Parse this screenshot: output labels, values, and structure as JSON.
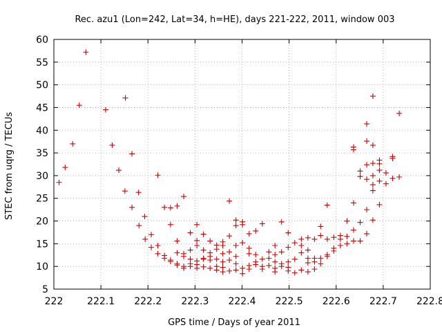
{
  "chart_data": {
    "type": "scatter",
    "title": "Rec. azu1 (Lon=242, Lat=34, h=HE), days 221-222, 2011, window 003",
    "xlabel": "GPS time / Days of year 2011",
    "ylabel": "STEC from uqrg / TECUs",
    "xlim": [
      222,
      222.8
    ],
    "ylim": [
      5,
      60
    ],
    "xticks": [
      "222",
      "222.1",
      "222.2",
      "222.3",
      "222.4",
      "222.5",
      "222.6",
      "222.7",
      "222.8"
    ],
    "yticks": [
      "5",
      "10",
      "15",
      "20",
      "25",
      "30",
      "35",
      "40",
      "45",
      "50",
      "55",
      "60"
    ],
    "marker": "+",
    "color": "#cc0000",
    "points": [
      [
        222.011,
        28.5
      ],
      [
        222.024,
        31.8
      ],
      [
        222.04,
        37.0
      ],
      [
        222.054,
        45.5
      ],
      [
        222.068,
        57.2
      ],
      [
        222.11,
        44.5
      ],
      [
        222.124,
        36.7
      ],
      [
        222.138,
        31.2
      ],
      [
        222.151,
        26.6
      ],
      [
        222.152,
        47.1
      ],
      [
        222.166,
        34.8
      ],
      [
        222.166,
        23.0
      ],
      [
        222.18,
        26.3
      ],
      [
        222.181,
        19.0
      ],
      [
        222.193,
        21.0
      ],
      [
        222.194,
        16.0
      ],
      [
        222.207,
        17.0
      ],
      [
        222.207,
        14.2
      ],
      [
        222.221,
        30.1
      ],
      [
        222.221,
        14.6
      ],
      [
        222.221,
        12.8
      ],
      [
        222.235,
        23.0
      ],
      [
        222.235,
        12.4
      ],
      [
        222.235,
        11.8
      ],
      [
        222.248,
        22.9
      ],
      [
        222.248,
        19.2
      ],
      [
        222.248,
        11.4
      ],
      [
        222.248,
        11.1
      ],
      [
        222.262,
        23.3
      ],
      [
        222.262,
        15.6
      ],
      [
        222.262,
        13.0
      ],
      [
        222.262,
        10.6
      ],
      [
        222.262,
        10.3
      ],
      [
        222.276,
        25.4
      ],
      [
        222.276,
        12.8
      ],
      [
        222.276,
        12.2
      ],
      [
        222.276,
        10.0
      ],
      [
        222.276,
        9.6
      ],
      [
        222.29,
        17.4
      ],
      [
        222.29,
        13.6
      ],
      [
        222.29,
        11.6
      ],
      [
        222.29,
        10.6
      ],
      [
        222.29,
        10.0
      ],
      [
        222.304,
        19.2
      ],
      [
        222.304,
        15.7
      ],
      [
        222.304,
        14.6
      ],
      [
        222.304,
        11.2
      ],
      [
        222.304,
        10.4
      ],
      [
        222.304,
        9.6
      ],
      [
        222.318,
        17.1
      ],
      [
        222.318,
        13.6
      ],
      [
        222.318,
        11.8
      ],
      [
        222.318,
        11.6
      ],
      [
        222.318,
        9.9
      ],
      [
        222.332,
        15.6
      ],
      [
        222.332,
        13.0
      ],
      [
        222.332,
        12.2
      ],
      [
        222.332,
        11.4
      ],
      [
        222.332,
        9.6
      ],
      [
        222.346,
        14.7
      ],
      [
        222.346,
        13.8
      ],
      [
        222.346,
        11.6
      ],
      [
        222.346,
        10.0
      ],
      [
        222.346,
        9.2
      ],
      [
        222.359,
        15.4
      ],
      [
        222.359,
        14.6
      ],
      [
        222.359,
        12.8
      ],
      [
        222.359,
        11.0
      ],
      [
        222.359,
        9.8
      ],
      [
        222.359,
        8.8
      ],
      [
        222.373,
        24.4
      ],
      [
        222.373,
        16.7
      ],
      [
        222.373,
        13.2
      ],
      [
        222.373,
        11.4
      ],
      [
        222.373,
        9.0
      ],
      [
        222.387,
        20.2
      ],
      [
        222.387,
        19.0
      ],
      [
        222.387,
        14.6
      ],
      [
        222.387,
        12.2
      ],
      [
        222.387,
        10.6
      ],
      [
        222.387,
        9.2
      ],
      [
        222.401,
        19.8
      ],
      [
        222.401,
        19.2
      ],
      [
        222.401,
        15.2
      ],
      [
        222.401,
        9.6
      ],
      [
        222.401,
        8.4
      ],
      [
        222.415,
        17.2
      ],
      [
        222.415,
        14.0
      ],
      [
        222.415,
        12.8
      ],
      [
        222.415,
        10.2
      ],
      [
        222.415,
        9.4
      ],
      [
        222.429,
        17.8
      ],
      [
        222.429,
        12.6
      ],
      [
        222.429,
        11.0
      ],
      [
        222.429,
        10.4
      ],
      [
        222.443,
        19.4
      ],
      [
        222.443,
        11.6
      ],
      [
        222.443,
        10.0
      ],
      [
        222.443,
        9.4
      ],
      [
        222.457,
        13.2
      ],
      [
        222.457,
        11.8
      ],
      [
        222.457,
        10.2
      ],
      [
        222.47,
        14.6
      ],
      [
        222.47,
        12.6
      ],
      [
        222.47,
        11.0
      ],
      [
        222.47,
        9.6
      ],
      [
        222.47,
        8.8
      ],
      [
        222.484,
        19.8
      ],
      [
        222.484,
        13.2
      ],
      [
        222.484,
        10.6
      ],
      [
        222.484,
        10.0
      ],
      [
        222.498,
        17.4
      ],
      [
        222.498,
        14.2
      ],
      [
        222.498,
        11.0
      ],
      [
        222.498,
        9.8
      ],
      [
        222.498,
        9.0
      ],
      [
        222.512,
        15.2
      ],
      [
        222.512,
        11.6
      ],
      [
        222.512,
        8.6
      ],
      [
        222.526,
        16.0
      ],
      [
        222.526,
        14.6
      ],
      [
        222.526,
        13.0
      ],
      [
        222.526,
        9.2
      ],
      [
        222.54,
        16.3
      ],
      [
        222.54,
        13.6
      ],
      [
        222.54,
        11.8
      ],
      [
        222.54,
        10.8
      ],
      [
        222.54,
        8.8
      ],
      [
        222.554,
        16.0
      ],
      [
        222.554,
        11.8
      ],
      [
        222.554,
        11.0
      ],
      [
        222.554,
        9.4
      ],
      [
        222.567,
        18.8
      ],
      [
        222.567,
        16.8
      ],
      [
        222.567,
        11.8
      ],
      [
        222.567,
        10.6
      ],
      [
        222.581,
        23.5
      ],
      [
        222.581,
        16.0
      ],
      [
        222.581,
        12.6
      ],
      [
        222.581,
        12.2
      ],
      [
        222.595,
        16.4
      ],
      [
        222.595,
        14.0
      ],
      [
        222.595,
        13.4
      ],
      [
        222.609,
        16.8
      ],
      [
        222.609,
        16.0
      ],
      [
        222.609,
        14.6
      ],
      [
        222.623,
        20.0
      ],
      [
        222.623,
        16.6
      ],
      [
        222.623,
        15.0
      ],
      [
        222.637,
        36.3
      ],
      [
        222.637,
        35.7
      ],
      [
        222.637,
        24.0
      ],
      [
        222.637,
        18.0
      ],
      [
        222.637,
        15.6
      ],
      [
        222.651,
        31.0
      ],
      [
        222.651,
        29.8
      ],
      [
        222.651,
        19.7
      ],
      [
        222.651,
        15.6
      ],
      [
        222.665,
        41.4
      ],
      [
        222.665,
        37.6
      ],
      [
        222.665,
        32.4
      ],
      [
        222.665,
        29.2
      ],
      [
        222.665,
        22.5
      ],
      [
        222.665,
        17.2
      ],
      [
        222.678,
        47.5
      ],
      [
        222.678,
        36.7
      ],
      [
        222.678,
        32.7
      ],
      [
        222.678,
        30.0
      ],
      [
        222.678,
        28.0
      ],
      [
        222.678,
        26.7
      ],
      [
        222.678,
        20.2
      ],
      [
        222.692,
        33.4
      ],
      [
        222.692,
        32.6
      ],
      [
        222.692,
        31.2
      ],
      [
        222.692,
        28.8
      ],
      [
        222.692,
        23.6
      ],
      [
        222.706,
        30.6
      ],
      [
        222.706,
        28.2
      ],
      [
        222.72,
        34.2
      ],
      [
        222.72,
        33.8
      ],
      [
        222.72,
        29.4
      ],
      [
        222.734,
        43.7
      ],
      [
        222.734,
        29.7
      ]
    ]
  }
}
